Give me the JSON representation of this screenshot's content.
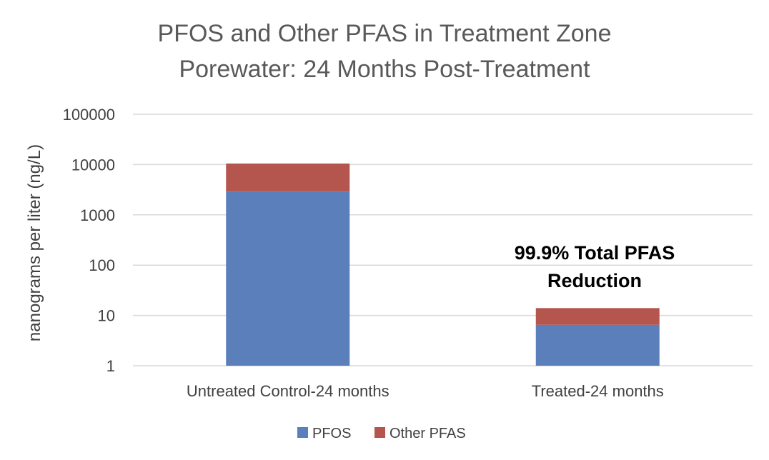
{
  "chart_data": {
    "type": "bar",
    "stacked": true,
    "y_scale": "log",
    "title_lines": [
      "PFOS and Other PFAS in Treatment Zone",
      "Porewater: 24 Months Post-Treatment"
    ],
    "ylabel": "nanograms per liter (ng/L)",
    "xlabel": "",
    "ylim": [
      1,
      100000
    ],
    "yticks": [
      1,
      10,
      100,
      1000,
      10000,
      100000
    ],
    "grid": true,
    "categories": [
      "Untreated Control-24 months",
      "Treated-24 months"
    ],
    "series": [
      {
        "name": "PFOS",
        "values": [
          2900,
          6.5
        ],
        "color": "#5a7fbb"
      },
      {
        "name": "Other PFAS",
        "values": [
          7600,
          7.5
        ],
        "color": "#b5564e"
      }
    ],
    "annotation_lines": [
      "99.9% Total PFAS",
      "Reduction"
    ],
    "legend_position": "bottom"
  }
}
